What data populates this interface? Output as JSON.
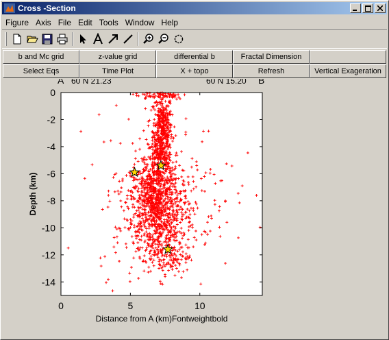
{
  "window": {
    "title": "Cross -Section",
    "controls": [
      "_",
      "□",
      "×"
    ]
  },
  "menu": [
    {
      "label": "Figure"
    },
    {
      "label": "Axis"
    },
    {
      "label": "File"
    },
    {
      "label": "Edit"
    },
    {
      "label": "Tools"
    },
    {
      "label": "Window"
    },
    {
      "label": "Help"
    }
  ],
  "toolbar": {
    "icons": [
      "new-file-icon",
      "open-folder-icon",
      "save-icon",
      "print-icon",
      "arrow-pointer-icon",
      "text-insert-icon",
      "arrow-insert-icon",
      "line-insert-icon",
      "zoom-in-icon",
      "zoom-out-icon",
      "rotate-icon"
    ]
  },
  "buttons_row1": [
    "b and Mc grid",
    "z-value grid",
    "differential b",
    "Fractal Dimension",
    ""
  ],
  "buttons_row2": [
    "Select Eqs",
    "Time Plot",
    "X + topo",
    "Refresh",
    "Vertical Exageration"
  ],
  "plot_header": {
    "left_marker": "A",
    "left_coord": "60 N 21.23",
    "right_coord": "60 N 15.20",
    "right_marker": "B"
  },
  "colors": {
    "titlebar_start": "#0a246a",
    "titlebar_end": "#a6caf0",
    "marker": "#ff0000",
    "star_fill": "#ffd700"
  },
  "chart_data": {
    "type": "scatter",
    "title": "",
    "xlabel": "Distance from A (km)Fontweightbold",
    "ylabel": "Depth (km)",
    "xlim": [
      0,
      14.5
    ],
    "ylim": [
      -15,
      0
    ],
    "xticks": [
      0,
      5,
      10
    ],
    "yticks": [
      0,
      -2,
      -4,
      -6,
      -8,
      -10,
      -12,
      -14
    ],
    "grid": false,
    "marker": "+",
    "series": [
      {
        "description": "earthquake hypocenters",
        "clusters": [
          {
            "cx": 7.3,
            "cy": -2.8,
            "sx": 0.35,
            "sy": 1.4,
            "n": 420
          },
          {
            "cx": 7.1,
            "cy": -5.0,
            "sx": 0.5,
            "sy": 0.8,
            "n": 180
          },
          {
            "cx": 6.8,
            "cy": -7.8,
            "sx": 0.9,
            "sy": 1.3,
            "n": 650
          },
          {
            "cx": 7.0,
            "cy": -10.0,
            "sx": 1.2,
            "sy": 1.2,
            "n": 300
          },
          {
            "cx": 7.6,
            "cy": -12.0,
            "sx": 0.8,
            "sy": 0.9,
            "n": 140
          },
          {
            "cx": 7.2,
            "cy": -0.2,
            "sx": 1.0,
            "sy": 0.15,
            "n": 60
          },
          {
            "cx": 7.5,
            "cy": -7.5,
            "sx": 2.5,
            "sy": 3.0,
            "n": 260
          }
        ]
      }
    ],
    "stars": [
      {
        "x": 5.3,
        "y": -5.9
      },
      {
        "x": 7.2,
        "y": -5.4
      },
      {
        "x": 7.7,
        "y": -11.6
      }
    ]
  }
}
